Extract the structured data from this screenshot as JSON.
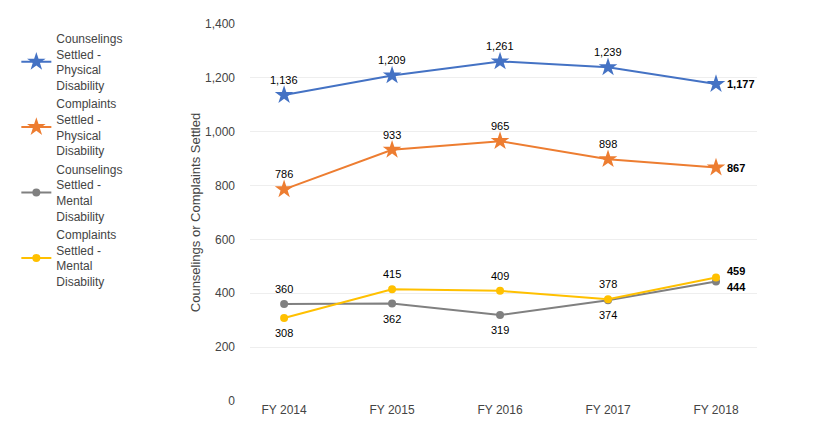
{
  "chart_data": {
    "type": "line",
    "categories": [
      "FY 2014",
      "FY 2015",
      "FY 2016",
      "FY 2017",
      "FY 2018"
    ],
    "series": [
      {
        "name": "Counselings\nSettled -\nPhysical\nDisability",
        "color": "#4472C4",
        "marker": "star",
        "values": [
          1136,
          1209,
          1261,
          1239,
          1177
        ],
        "value_labels": [
          "1,136",
          "1,209",
          "1,261",
          "1,239",
          "1,177"
        ]
      },
      {
        "name": "Complaints\nSettled -\nPhysical\nDisability",
        "color": "#ED7D31",
        "marker": "star",
        "values": [
          786,
          933,
          965,
          898,
          867
        ],
        "value_labels": [
          "786",
          "933",
          "965",
          "898",
          "867"
        ]
      },
      {
        "name": "Counselings\nSettled -\nMental\nDisability",
        "color": "#808080",
        "marker": "circle",
        "values": [
          360,
          362,
          319,
          374,
          444
        ],
        "value_labels": [
          "360",
          "362",
          "319",
          "374",
          "444"
        ]
      },
      {
        "name": "Complaints\nSettled -\nMental\nDisability",
        "color": "#FFC000",
        "marker": "circle",
        "values": [
          308,
          415,
          409,
          378,
          459
        ],
        "value_labels": [
          "308",
          "415",
          "409",
          "378",
          "459"
        ]
      }
    ],
    "y_label": "Counselings or Complaints Settled",
    "ylim": [
      0,
      1400
    ],
    "yticks": [
      0,
      200,
      400,
      600,
      800,
      {
        "value": 1000,
        "label": "1,000"
      },
      {
        "value": 1200,
        "label": "1,200"
      },
      {
        "value": 1400,
        "label": "1,400"
      }
    ],
    "grid": true,
    "data_labels": true,
    "legend": "left"
  }
}
